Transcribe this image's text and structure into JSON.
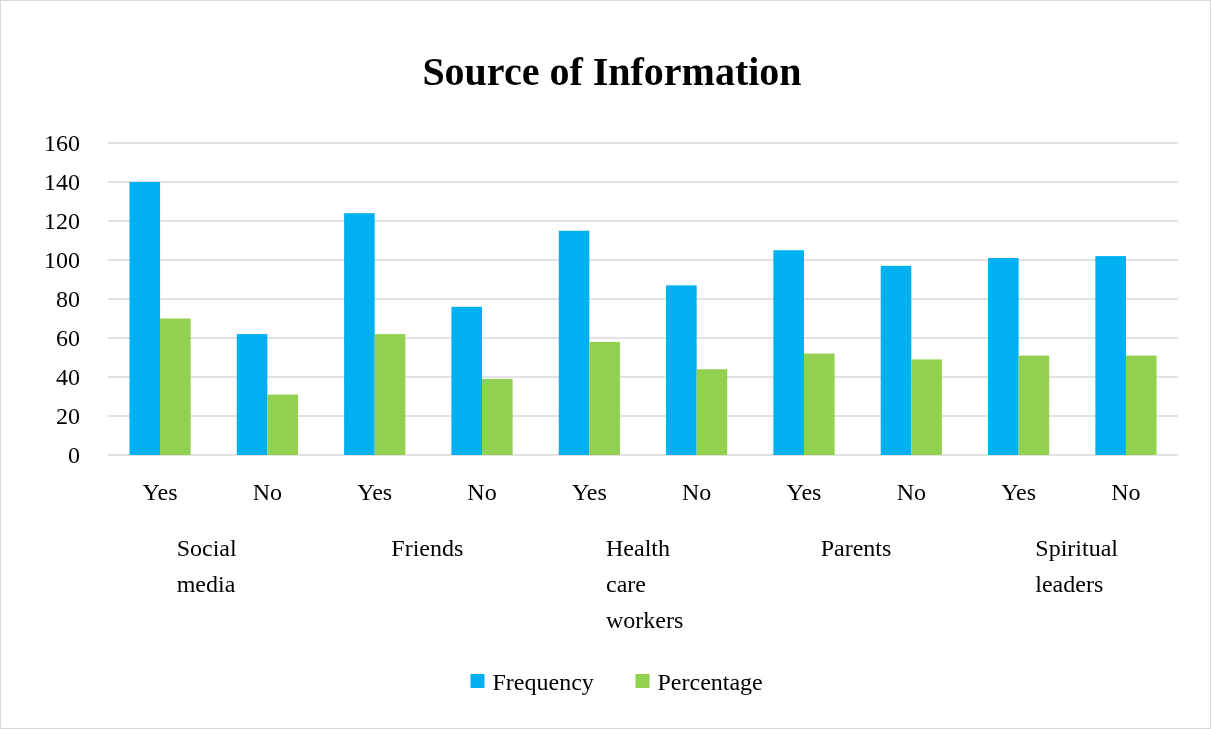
{
  "chart_data": {
    "type": "bar",
    "title": "Source of Information",
    "categories": [
      "Yes",
      "No",
      "Yes",
      "No",
      "Yes",
      "No",
      "Yes",
      "No",
      "Yes",
      "No"
    ],
    "series": [
      {
        "name": "Frequency",
        "color": "#00b0f0",
        "values": [
          140,
          62,
          124,
          76,
          115,
          87,
          105,
          97,
          101,
          102
        ]
      },
      {
        "name": "Percentage",
        "color": "#92d050",
        "values": [
          70,
          31,
          62,
          39,
          58,
          44,
          52,
          49,
          51,
          51
        ]
      }
    ],
    "annotations": [
      "Social media",
      "Friends",
      "Health care workers",
      "Parents",
      "Spiritual leaders"
    ],
    "ylim": [
      0,
      160
    ],
    "yticks": [
      0,
      20,
      40,
      60,
      80,
      100,
      120,
      140,
      160
    ],
    "grid": "y",
    "legend": "bottom"
  }
}
